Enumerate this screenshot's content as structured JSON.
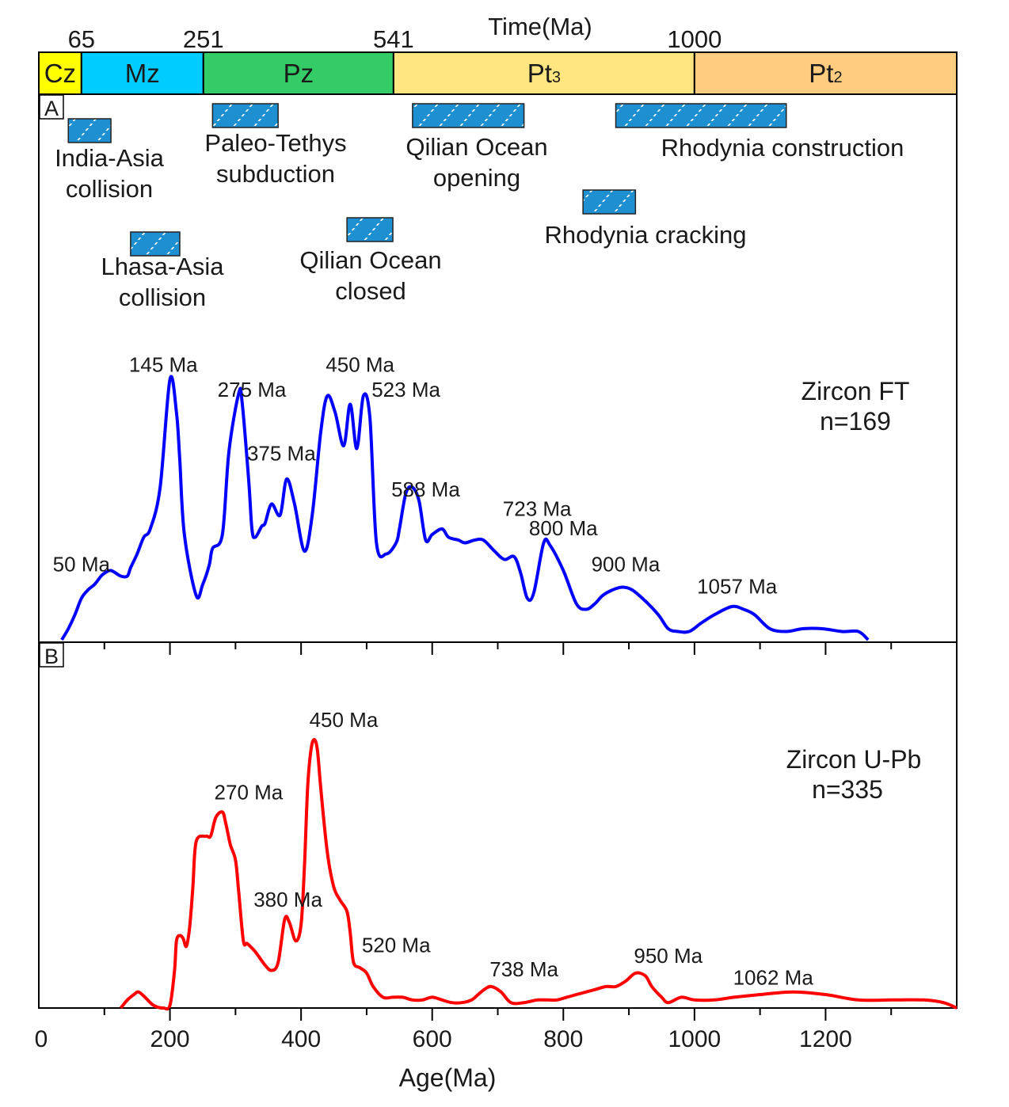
{
  "timescale": {
    "title": "Time(Ma)",
    "boundary_labels": [
      "65",
      "251",
      "541",
      "1000"
    ],
    "eras": [
      {
        "code": "Cz",
        "start": 0,
        "end": 65,
        "color": "#FFFF00"
      },
      {
        "code": "Mz",
        "start": 65,
        "end": 251,
        "color": "#00CCFF"
      },
      {
        "code": "Pz",
        "start": 251,
        "end": 541,
        "color": "#33CC66"
      },
      {
        "code": "Pt",
        "subscript": "3",
        "start": 541,
        "end": 1000,
        "color": "#FFE680"
      },
      {
        "code": "Pt",
        "subscript": "2",
        "start": 1000,
        "end": 1400,
        "color": "#FFCC80"
      }
    ]
  },
  "events": [
    {
      "lines": [
        "India-Asia",
        "collision"
      ],
      "start": 45,
      "end": 110
    },
    {
      "lines": [
        "Paleo-Tethys",
        "subduction"
      ],
      "start": 265,
      "end": 365
    },
    {
      "lines": [
        "Qilian Ocean",
        "opening"
      ],
      "start": 570,
      "end": 740
    },
    {
      "lines": [
        "Rhodynia construction"
      ],
      "start": 880,
      "end": 1140
    },
    {
      "lines": [
        "Rhodynia cracking"
      ],
      "start": 830,
      "end": 910
    },
    {
      "lines": [
        "Lhasa-Asia",
        "collision"
      ],
      "start": 140,
      "end": 215
    },
    {
      "lines": [
        "Qilian Ocean",
        "closed"
      ],
      "start": 470,
      "end": 540
    }
  ],
  "chart_data": [
    {
      "type": "line",
      "panel": "A",
      "title": "Zircon FT",
      "n_label": "n=169",
      "color": "#0000FF",
      "xlim": [
        0,
        1400
      ],
      "ylim": [
        0,
        1
      ],
      "x": [
        35,
        45,
        55,
        65,
        75,
        85,
        95,
        100,
        110,
        125,
        135,
        140,
        150,
        160,
        170,
        185,
        200,
        210,
        215,
        222,
        240,
        250,
        260,
        265,
        280,
        290,
        305,
        310,
        320,
        325,
        330,
        340,
        345,
        355,
        368,
        378,
        390,
        405,
        417,
        430,
        440,
        452,
        465,
        475,
        485,
        495,
        505,
        515,
        530,
        545,
        550,
        560,
        570,
        580,
        590,
        600,
        615,
        625,
        640,
        650,
        665,
        678,
        695,
        710,
        725,
        735,
        745,
        755,
        770,
        780,
        800,
        820,
        835,
        848,
        860,
        875,
        890,
        905,
        925,
        945,
        960,
        975,
        992,
        1010,
        1030,
        1057,
        1075,
        1092,
        1115,
        1140,
        1165,
        1195,
        1225,
        1250,
        1265
      ],
      "y": [
        0.0,
        0.04,
        0.09,
        0.15,
        0.18,
        0.2,
        0.23,
        0.24,
        0.25,
        0.23,
        0.23,
        0.26,
        0.31,
        0.37,
        0.4,
        0.55,
        0.94,
        0.82,
        0.65,
        0.38,
        0.16,
        0.2,
        0.27,
        0.33,
        0.38,
        0.68,
        0.89,
        0.86,
        0.58,
        0.4,
        0.37,
        0.41,
        0.42,
        0.49,
        0.45,
        0.58,
        0.49,
        0.32,
        0.45,
        0.75,
        0.88,
        0.82,
        0.7,
        0.85,
        0.69,
        0.88,
        0.8,
        0.35,
        0.31,
        0.35,
        0.4,
        0.53,
        0.55,
        0.5,
        0.36,
        0.38,
        0.4,
        0.37,
        0.36,
        0.35,
        0.36,
        0.36,
        0.32,
        0.29,
        0.3,
        0.24,
        0.15,
        0.17,
        0.35,
        0.34,
        0.25,
        0.13,
        0.11,
        0.13,
        0.16,
        0.18,
        0.19,
        0.18,
        0.14,
        0.09,
        0.04,
        0.03,
        0.03,
        0.06,
        0.09,
        0.12,
        0.11,
        0.09,
        0.04,
        0.03,
        0.04,
        0.04,
        0.03,
        0.03,
        0.0
      ],
      "peak_labels": [
        {
          "text": "50 Ma",
          "x": 65,
          "y": 0.23
        },
        {
          "text": "145 Ma",
          "x": 190,
          "y": 0.95
        },
        {
          "text": "275 Ma",
          "x": 325,
          "y": 0.86
        },
        {
          "text": "375 Ma",
          "x": 370,
          "y": 0.63
        },
        {
          "text": "450 Ma",
          "x": 490,
          "y": 0.95
        },
        {
          "text": "523 Ma",
          "x": 560,
          "y": 0.86
        },
        {
          "text": "588 Ma",
          "x": 590,
          "y": 0.5
        },
        {
          "text": "723 Ma",
          "x": 760,
          "y": 0.43
        },
        {
          "text": "800 Ma",
          "x": 800,
          "y": 0.36
        },
        {
          "text": "900 Ma",
          "x": 895,
          "y": 0.23
        },
        {
          "text": "1057 Ma",
          "x": 1065,
          "y": 0.15
        }
      ]
    },
    {
      "type": "line",
      "panel": "B",
      "title": "Zircon U-Pb",
      "n_label": "n=335",
      "color": "#FF0000",
      "xlim": [
        0,
        1400
      ],
      "ylim": [
        0,
        1
      ],
      "xlabel": "Age(Ma)",
      "xticks": [
        0,
        200,
        400,
        600,
        800,
        1000,
        1200
      ],
      "x": [
        125,
        135,
        145,
        152,
        162,
        175,
        190,
        200,
        207,
        210,
        215,
        220,
        225,
        230,
        235,
        240,
        255,
        262,
        270,
        280,
        285,
        292,
        300,
        305,
        312,
        318,
        330,
        345,
        355,
        365,
        375,
        382,
        392,
        400,
        405,
        410,
        415,
        420,
        425,
        430,
        440,
        450,
        460,
        470,
        475,
        480,
        490,
        500,
        510,
        525,
        540,
        555,
        570,
        585,
        600,
        615,
        630,
        645,
        660,
        670,
        680,
        690,
        705,
        720,
        740,
        760,
        775,
        790,
        805,
        820,
        835,
        850,
        865,
        880,
        895,
        910,
        925,
        935,
        950,
        960,
        980,
        1000,
        1030,
        1060,
        1100,
        1150,
        1200,
        1250,
        1300,
        1350,
        1380,
        1400
      ],
      "y": [
        0.0,
        0.03,
        0.05,
        0.06,
        0.04,
        0.01,
        0.0,
        0.01,
        0.14,
        0.25,
        0.27,
        0.26,
        0.23,
        0.3,
        0.45,
        0.62,
        0.64,
        0.64,
        0.71,
        0.73,
        0.69,
        0.61,
        0.55,
        0.43,
        0.25,
        0.24,
        0.21,
        0.16,
        0.14,
        0.17,
        0.33,
        0.32,
        0.25,
        0.31,
        0.52,
        0.82,
        0.96,
        1.0,
        0.96,
        0.82,
        0.58,
        0.45,
        0.4,
        0.36,
        0.28,
        0.17,
        0.15,
        0.13,
        0.08,
        0.04,
        0.04,
        0.04,
        0.03,
        0.03,
        0.04,
        0.03,
        0.02,
        0.02,
        0.03,
        0.05,
        0.07,
        0.08,
        0.06,
        0.02,
        0.02,
        0.03,
        0.03,
        0.03,
        0.04,
        0.05,
        0.06,
        0.07,
        0.08,
        0.08,
        0.1,
        0.13,
        0.12,
        0.08,
        0.04,
        0.02,
        0.04,
        0.03,
        0.03,
        0.04,
        0.05,
        0.06,
        0.05,
        0.03,
        0.03,
        0.03,
        0.02,
        0.0
      ],
      "peak_labels": [
        {
          "text": "270 Ma",
          "x": 320,
          "y": 0.76
        },
        {
          "text": "380 Ma",
          "x": 380,
          "y": 0.36
        },
        {
          "text": "450 Ma",
          "x": 465,
          "y": 1.03
        },
        {
          "text": "520 Ma",
          "x": 545,
          "y": 0.19
        },
        {
          "text": "738 Ma",
          "x": 740,
          "y": 0.1
        },
        {
          "text": "950 Ma",
          "x": 960,
          "y": 0.15
        },
        {
          "text": "1062 Ma",
          "x": 1120,
          "y": 0.07
        }
      ]
    }
  ],
  "panel_labels": [
    "A",
    "B"
  ]
}
